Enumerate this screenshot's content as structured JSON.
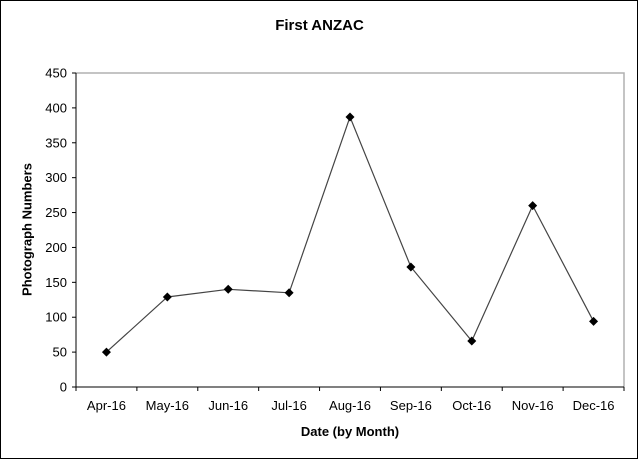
{
  "chart_data": {
    "type": "line",
    "title": "First ANZAC",
    "xlabel": "Date (by Month)",
    "ylabel": "Photograph Numbers",
    "categories": [
      "Apr-16",
      "May-16",
      "Jun-16",
      "Jul-16",
      "Aug-16",
      "Sep-16",
      "Oct-16",
      "Nov-16",
      "Dec-16"
    ],
    "series": [
      {
        "name": "First ANZAC",
        "values": [
          50,
          129,
          140,
          135,
          387,
          172,
          66,
          260,
          94
        ]
      }
    ],
    "ylim": [
      0,
      450
    ],
    "yticks": [
      0,
      50,
      100,
      150,
      200,
      250,
      300,
      350,
      400,
      450
    ],
    "grid": false,
    "legend": "none",
    "marker": "diamond",
    "line_color": "#000000"
  }
}
